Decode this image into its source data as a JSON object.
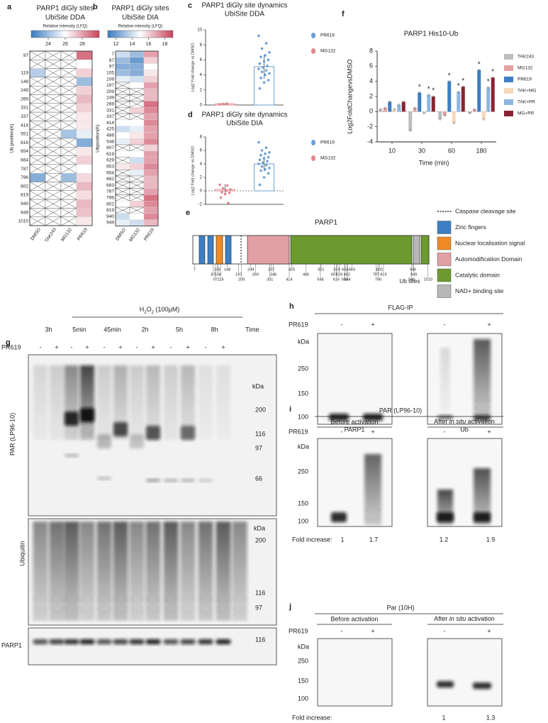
{
  "a": {
    "label": "a",
    "title": [
      "PARP1 diGly sites",
      "UbiSite DDA"
    ],
    "colorbar_label": "Relative intensity (LFQ)",
    "colorbar_range": [
      22,
      30
    ],
    "colorbar_ticks": [
      24,
      26,
      28
    ],
    "colors": [
      "#3b7bbf",
      "#ffffff",
      "#c8435a"
    ],
    "y_label": "Ub position(K)",
    "rows": [
      97,
      null,
      119,
      148,
      249,
      269,
      331,
      337,
      414,
      551,
      616,
      654,
      664,
      787,
      796,
      802,
      819,
      940,
      949,
      1010
    ],
    "columns": [
      "DMSO",
      "TAK243",
      "MG132",
      "PR619"
    ],
    "values": [
      [
        null,
        null,
        24.5,
        null,
        null,
        null,
        null,
        null,
        null,
        null,
        null,
        null,
        null,
        null,
        23.5,
        null,
        null,
        null,
        null,
        null
      ],
      [
        null,
        null,
        null,
        null,
        null,
        null,
        null,
        null,
        null,
        null,
        null,
        null,
        null,
        null,
        null,
        null,
        null,
        null,
        null,
        null
      ],
      [
        null,
        null,
        null,
        null,
        null,
        null,
        null,
        null,
        null,
        24.2,
        null,
        null,
        null,
        null,
        24,
        null,
        null,
        null,
        null,
        null
      ],
      [
        29,
        26,
        27,
        24,
        27,
        27.5,
        27,
        26.5,
        26.5,
        25.5,
        23.5,
        26.5,
        27,
        26,
        26.8,
        27.5,
        26.7,
        27.5,
        27.3,
        26.5
      ]
    ]
  },
  "b": {
    "label": "b",
    "title": [
      "PARP1 diGly sites",
      "UbiSite DIA"
    ],
    "colorbar_label": "Relative intensity (LFQ)",
    "colorbar_range": [
      11,
      19
    ],
    "colorbar_ticks": [
      12,
      14,
      16,
      18
    ],
    "colors": [
      "#3b7bbf",
      "#ffffff",
      "#c8435a"
    ],
    "y_label": "Ubposition(K)",
    "rows": [
      7,
      87,
      97,
      105,
      108,
      197,
      209,
      249,
      269,
      331,
      337,
      414,
      425,
      486,
      548,
      607,
      619,
      629,
      653,
      654,
      662,
      683,
      787,
      796,
      802,
      819,
      940,
      949
    ],
    "columns": [
      "DMSO",
      "MG132",
      "PR619"
    ],
    "values": [
      [
        14,
        13,
        12.5,
        13,
        14.5,
        null,
        null,
        null,
        null,
        null,
        null,
        15,
        14,
        15,
        14.5,
        null,
        15,
        null,
        15.5,
        null,
        null,
        null,
        null,
        null,
        15,
        null,
        14,
        14.5
      ],
      [
        13,
        12,
        12.5,
        12.5,
        14,
        15,
        null,
        null,
        null,
        16,
        null,
        15,
        14.5,
        15.5,
        16,
        null,
        15,
        14,
        16,
        14.5,
        null,
        null,
        null,
        null,
        16,
        null,
        15,
        14
      ],
      [
        17,
        16,
        15,
        15.5,
        16,
        17,
        16.5,
        16.5,
        18,
        17.5,
        17,
        17.5,
        17,
        17,
        17.5,
        16,
        17,
        17,
        17.5,
        17,
        16.5,
        16.5,
        17,
        18,
        17.5,
        17,
        17.5,
        16.5
      ]
    ]
  },
  "c": {
    "label": "c",
    "title": [
      "PARP1 diGly site dynamics",
      "UbiSite DDA"
    ],
    "y_label": "Log2 Fold change vs DMSO",
    "ylim": [
      0,
      10
    ],
    "yticks": [
      0,
      2,
      4,
      6,
      8,
      10
    ],
    "zero_line": false,
    "series": [
      {
        "name": "PR619",
        "color": "#6d9fd6",
        "value": 5.1,
        "error": 1.6,
        "points": [
          9.2,
          8.2,
          7.5,
          7.0,
          6.6,
          6.4,
          6.0,
          5.8,
          5.5,
          5.2,
          5.0,
          4.8,
          4.6,
          4.4,
          4.2,
          4.0,
          3.6,
          3.3,
          3.0,
          2.2
        ]
      },
      {
        "name": "MG132",
        "color": "#e0898f",
        "value": 0.15,
        "error": 0.1,
        "points": [
          0.1,
          0.2,
          0.15
        ]
      }
    ]
  },
  "d": {
    "label": "d",
    "title": [
      "PARP1 diGly site dynamics",
      "UbiSite DIA"
    ],
    "y_label": "Log2 Fold change vs DMSO",
    "ylim": [
      -2,
      8
    ],
    "yticks": [
      -2,
      0,
      2,
      4,
      6,
      8
    ],
    "zero_line": true,
    "series": [
      {
        "name": "PR619",
        "color": "#6d9fd6",
        "value": 4.0,
        "error": 1.1,
        "points": [
          7.2,
          6.4,
          6.0,
          5.7,
          5.5,
          5.3,
          5.0,
          4.8,
          4.6,
          4.4,
          4.2,
          4.0,
          3.8,
          3.6,
          3.4,
          3.2,
          3.0,
          2.6,
          2.0,
          0.9
        ]
      },
      {
        "name": "MG132",
        "color": "#e0898f",
        "value": 0.2,
        "error": 0.8,
        "points": [
          0.9,
          0.8,
          0.4,
          0.2,
          0,
          -0.2,
          -0.3,
          -0.5,
          -1.0,
          -1.8
        ]
      }
    ]
  },
  "e": {
    "label": "e",
    "title": "PARP1",
    "ub_label": "Ub sites",
    "legend": [
      {
        "name": "Caspase cleavage site",
        "color": "#000000"
      },
      {
        "name": "Zinc fingers",
        "color": "#3d7fc4"
      },
      {
        "name": "Nuclear localisation signal",
        "color": "#f08a24"
      },
      {
        "name": "Automodification Domain",
        "color": "#e0a0a4"
      },
      {
        "name": "Catalytic domain",
        "color": "#6c9a2e"
      },
      {
        "name": "NAD+ binding site",
        "color": "#b8b8b8"
      }
    ],
    "ub_sites": [
      7,
      87,
      97,
      105,
      108,
      119,
      148,
      197,
      209,
      249,
      269,
      331,
      337,
      346,
      414,
      425,
      486,
      548,
      551,
      607,
      616,
      619,
      629,
      653,
      654,
      662,
      664,
      683,
      787,
      796,
      802,
      819,
      940,
      946,
      949,
      1010
    ]
  },
  "f": {
    "label": "f",
    "type": "bar",
    "title": "PARP1 His10-Ub",
    "x_label": "Time (min)",
    "y_label": "Log2FoldChangevsDMSO",
    "categories": [
      10,
      30,
      60,
      180
    ],
    "ylim": [
      -4,
      8
    ],
    "yticks": [
      -4,
      -2,
      0,
      2,
      4,
      6,
      8
    ],
    "zero_line": true,
    "series": [
      {
        "name": "TAK243",
        "color": "#bdbdbd",
        "values": [
          0.3,
          -2.5,
          -1.0,
          -0.2
        ],
        "markers": [
          null,
          null,
          null,
          null
        ]
      },
      {
        "name": "MG132",
        "color": "#e3a0a0",
        "values": [
          0.5,
          0.5,
          -0.5,
          0.3
        ],
        "markers": [
          null,
          null,
          null,
          null
        ]
      },
      {
        "name": "PR619",
        "color": "#3d7fc4",
        "values": [
          1.3,
          2.5,
          4.0,
          5.5
        ],
        "markers": [
          null,
          "*",
          "*",
          "*"
        ]
      },
      {
        "name": "TAK+MG",
        "color": "#f8d8bc",
        "values": [
          0.3,
          -0.2,
          -1.5,
          -1.0
        ],
        "markers": [
          null,
          null,
          null,
          null
        ]
      },
      {
        "name": "TAK+PR",
        "color": "#8db6e0",
        "values": [
          0.9,
          2.2,
          2.6,
          3.2
        ],
        "markers": [
          null,
          "*",
          "*",
          "*"
        ]
      },
      {
        "name": "MG+PR",
        "color": "#8b2332",
        "values": [
          1.3,
          2.0,
          3.3,
          4.5
        ],
        "markers": [
          null,
          "*",
          "*",
          "*"
        ]
      }
    ]
  },
  "g": {
    "label": "g",
    "treatment": [
      "H",
      "2",
      "O",
      "2",
      " (100µM)"
    ],
    "times": [
      "3h",
      "5min",
      "45min",
      "2h",
      "5h",
      "8h"
    ],
    "time_label": "Time",
    "pr619_label": "PR619",
    "minus": "-",
    "plus": "+",
    "blots": [
      {
        "name": "PAR (LP96-10)",
        "kda": "kDa",
        "markers": [
          200,
          116,
          97,
          66
        ]
      },
      {
        "name": "Ubiquitin",
        "kda": "kDa",
        "markers": [
          200,
          116,
          97
        ]
      },
      {
        "name": "PARP1",
        "markers": [
          116
        ]
      }
    ]
  },
  "h": {
    "label": "h",
    "title": "FLAG-IP",
    "pr619_label": "PR619",
    "minus": "-",
    "plus": "+",
    "kda": "kDa",
    "markers": [
      250,
      150,
      100
    ],
    "lanes": [
      "PARP1",
      "Ub"
    ]
  },
  "i": {
    "label": "i",
    "title": "PAR (LP96-10)",
    "groups": [
      "Before activation",
      [
        "After ",
        "in situ",
        " activation"
      ]
    ],
    "pr619_label": "PR619",
    "minus": "-",
    "plus": "+",
    "kda": "kDa",
    "markers": [
      250,
      150,
      100
    ],
    "fold_label": "Fold increase:",
    "fold": [
      1,
      1.7,
      1.2,
      1.9
    ]
  },
  "j": {
    "label": "j",
    "title": "Par (10H)",
    "groups": [
      "Before activation",
      [
        "After ",
        "in situ",
        " activation"
      ]
    ],
    "pr619_label": "PR619",
    "minus": "-",
    "plus": "+",
    "kda": "kDa",
    "markers": [
      250,
      150,
      100
    ],
    "fold_label": "Fold increase:",
    "fold": [
      1,
      1.3
    ]
  }
}
